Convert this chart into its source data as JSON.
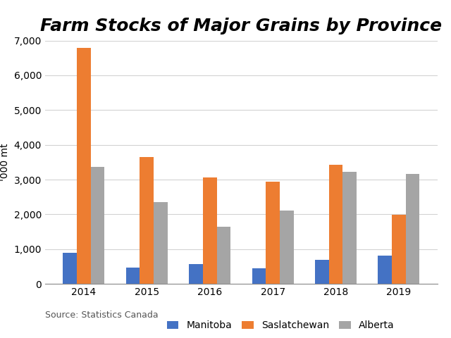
{
  "title": "Farm Stocks of Major Grains by Province",
  "years": [
    "2014",
    "2015",
    "2016",
    "2017",
    "2018",
    "2019"
  ],
  "manitoba": [
    900,
    480,
    570,
    440,
    700,
    820
  ],
  "saskatchewan": [
    6780,
    3640,
    3060,
    2940,
    3420,
    1990
  ],
  "alberta": [
    3360,
    2360,
    1640,
    2120,
    3220,
    3170
  ],
  "bar_colors": {
    "Manitoba": "#4472C4",
    "Saskatchewan": "#ED7D31",
    "Alberta": "#A5A5A5"
  },
  "ylabel": "'000 mt",
  "ylim": [
    0,
    7000
  ],
  "yticks": [
    0,
    1000,
    2000,
    3000,
    4000,
    5000,
    6000,
    7000
  ],
  "source_text": "Source: Statistics Canada",
  "background_color": "#FFFFFF",
  "title_fontsize": 18,
  "axis_fontsize": 10,
  "legend_fontsize": 10,
  "bar_width": 0.22
}
